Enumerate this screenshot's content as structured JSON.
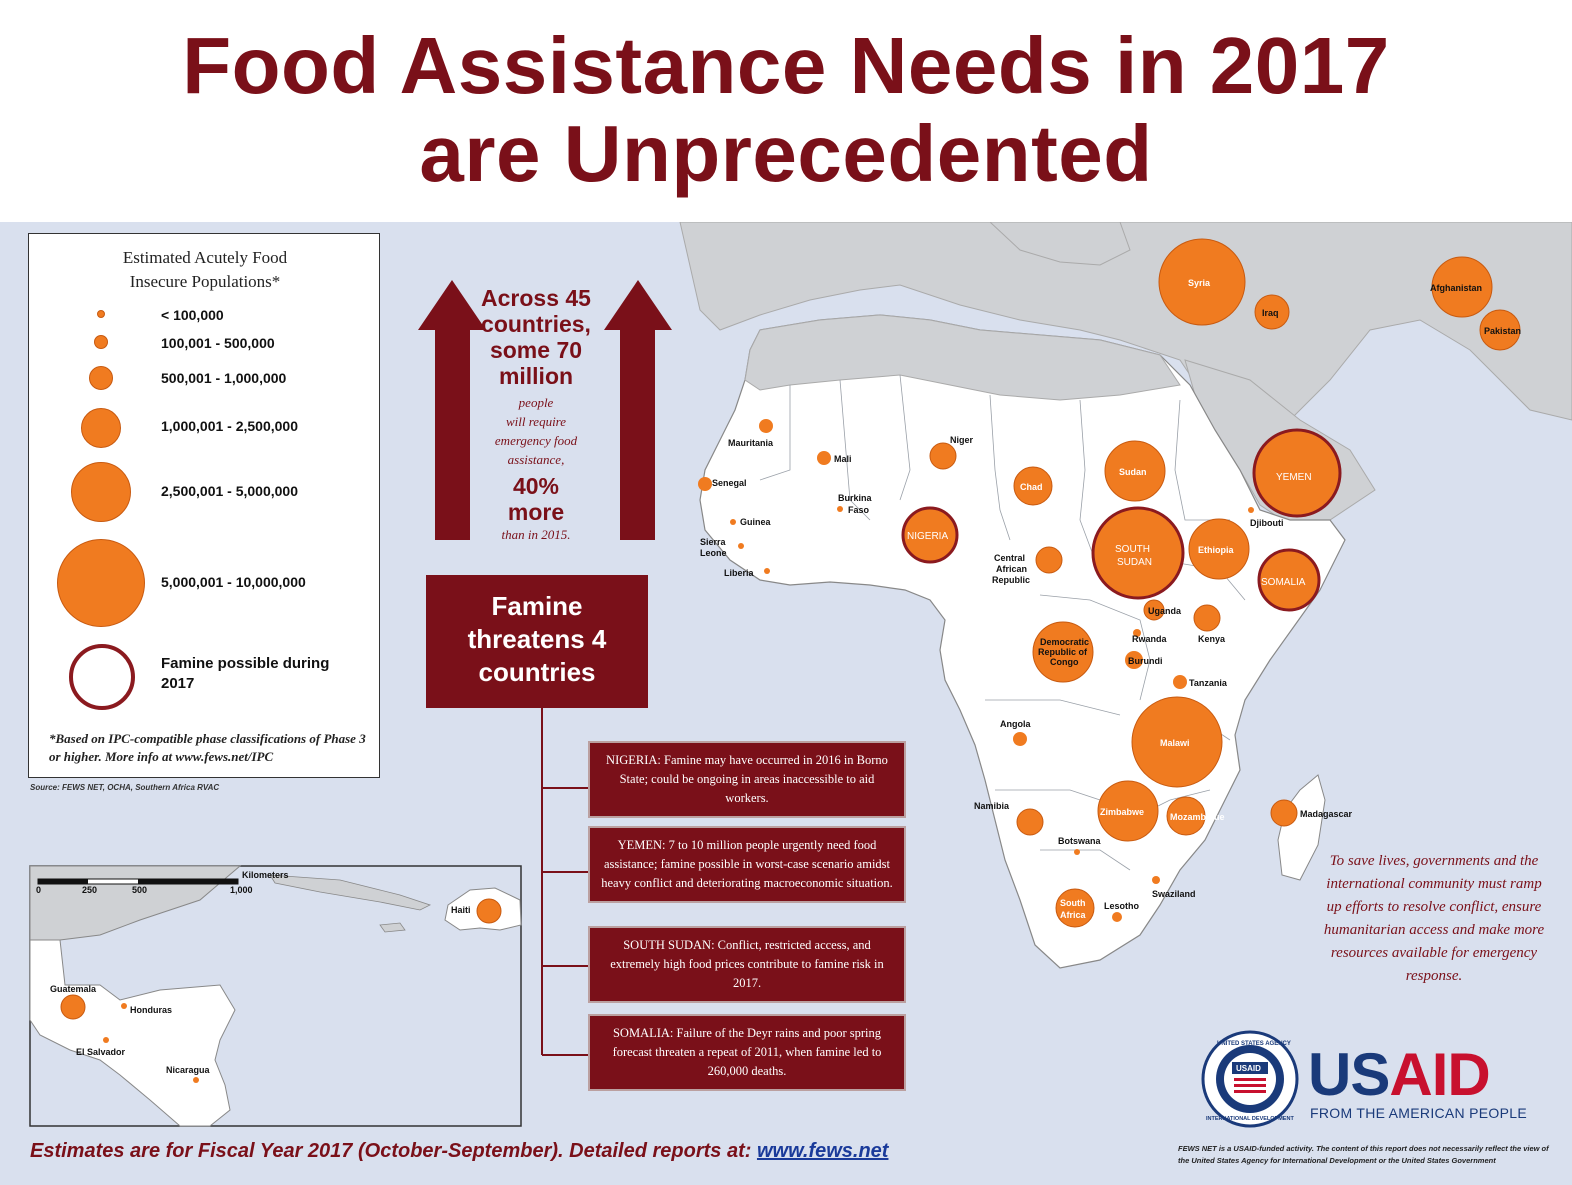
{
  "title": {
    "line1": "Food Assistance Needs in 2017",
    "line2": "are Unprecedented"
  },
  "legend": {
    "title_line1": "Estimated Acutely Food",
    "title_line2": "Insecure Populations*",
    "classes": [
      "< 100,000",
      "100,001 - 500,000",
      "500,001 - 1,000,000",
      "1,000,001 - 2,500,000",
      "2,500,001 - 5,000,000",
      "5,000,001 - 10,000,000"
    ],
    "famine_label": "Famine possible during 2017",
    "note": "*Based on IPC-compatible phase classifications of Phase 3 or higher. More info at www.fews.net/IPC",
    "source": "Source: FEWS NET, OCHA, Southern Africa RVAC"
  },
  "headline": {
    "big1": "Across 45",
    "big2": "countries,",
    "big3": "some 70",
    "big4": "million",
    "small1": "people",
    "small2": "will require",
    "small3": "emergency food",
    "small4": "assistance,",
    "pct1": "40%",
    "pct2": "more",
    "small5": "than in 2015."
  },
  "famine_box": {
    "line1": "Famine",
    "line2": "threatens 4",
    "line3": "countries"
  },
  "famine_reasons": [
    {
      "text": "NIGERIA: Famine may have occurred in 2016 in Borno State; could be ongoing in areas inaccessible to aid workers."
    },
    {
      "text": "YEMEN: 7 to 10 million people urgently need food assistance; famine possible in worst-case scenario amidst heavy conflict and deteriorating macroeconomic situation."
    },
    {
      "text": "SOUTH SUDAN:  Conflict, restricted access, and extremely high food prices contribute to famine risk in 2017."
    },
    {
      "text": "SOMALIA: Failure of the Deyr rains and poor spring forecast threaten a repeat of 2011, when famine led to 260,000 deaths."
    }
  ],
  "countries": {
    "syria": "Syria",
    "iraq": "Iraq",
    "afghanistan": "Afghanistan",
    "pakistan": "Pakistan",
    "yemen": "YEMEN",
    "mauritania": "Mauritania",
    "mali": "Mali",
    "niger": "Niger",
    "senegal": "Senegal",
    "burkina1": "Burkina",
    "burkina2": "Faso",
    "guinea": "Guinea",
    "sierra1": "Sierra",
    "sierra2": "Leone",
    "liberia": "Liberia",
    "chad": "Chad",
    "sudan": "Sudan",
    "djibouti": "Djibouti",
    "nigeria": "NIGERIA",
    "south_sudan1": "SOUTH",
    "south_sudan2": "SUDAN",
    "ethiopia": "Ethiopia",
    "somalia": "SOMALIA",
    "car1": "Central",
    "car2": "African",
    "car3": "Republic",
    "uganda": "Uganda",
    "kenya": "Kenya",
    "rwanda": "Rwanda",
    "burundi": "Burundi",
    "drc1": "Democratic",
    "drc2": "Republic of",
    "drc3": "Congo",
    "tanzania": "Tanzania",
    "angola": "Angola",
    "malawi": "Malawi",
    "namibia": "Namibia",
    "zimbabwe": "Zimbabwe",
    "mozambique": "Mozambique",
    "madagascar": "Madagascar",
    "botswana": "Botswana",
    "swaziland": "Swaziland",
    "south_africa1": "South",
    "south_africa2": "Africa",
    "lesotho": "Lesotho"
  },
  "inset": {
    "scale_unit": "Kilometers",
    "scale_ticks": [
      "0",
      "250",
      "500",
      "1,000"
    ],
    "haiti": "Haiti",
    "guatemala": "Guatemala",
    "honduras": "Honduras",
    "el_salvador": "El Salvador",
    "nicaragua": "Nicaragua"
  },
  "call_to_action": "To save lives, governments and the international community must ramp up efforts to resolve conflict, ensure humanitarian access and make more resources available for emergency response.",
  "usaid": {
    "wordmark_us": "US",
    "wordmark_aid": "AID",
    "tagline": "FROM THE AMERICAN PEOPLE",
    "seal_top": "UNITED STATES AGENCY",
    "seal_bottom": "INTERNATIONAL DEVELOPMENT",
    "seal_center": "USAID"
  },
  "footer": {
    "left_text": "Estimates are for Fiscal Year 2017 (October-September). Detailed reports at: ",
    "link": "www.fews.net",
    "right_text": "FEWS NET is a USAID-funded activity. The content of this report does not necessarily reflect the view of the United States Agency for International Development or the United States Government"
  },
  "colors": {
    "maroon": "#7a1019",
    "orange": "#f07b20",
    "ocean": "#d9e0ee",
    "land": "#ffffff",
    "land_gray": "#cfd1d4",
    "usaid_blue": "#1a3a7a",
    "usaid_red": "#c8102e"
  }
}
